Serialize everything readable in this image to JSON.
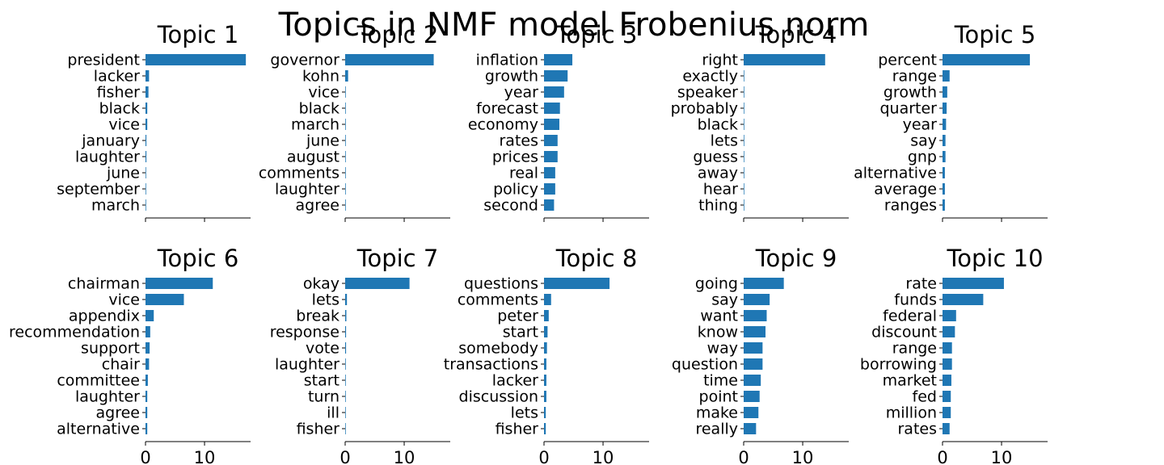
{
  "figure_title": "Topics in NMF model Frobenius norm",
  "colors": {
    "bar": "#1f77b4",
    "text": "#000000",
    "axis": "#000000"
  },
  "chart_data": [
    {
      "type": "bar",
      "orientation": "horizontal",
      "title": "Topic 1",
      "categories": [
        "president",
        "lacker",
        "fisher",
        "black",
        "vice",
        "january",
        "laughter",
        "june",
        "september",
        "march"
      ],
      "values": [
        17.0,
        0.6,
        0.5,
        0.3,
        0.3,
        0.15,
        0.15,
        0.1,
        0.1,
        0.1
      ],
      "xlim": [
        0,
        17.8
      ],
      "xticks": [
        0,
        10
      ],
      "show_xtick_labels": false
    },
    {
      "type": "bar",
      "orientation": "horizontal",
      "title": "Topic 2",
      "categories": [
        "governor",
        "kohn",
        "vice",
        "black",
        "march",
        "june",
        "august",
        "comments",
        "laughter",
        "agree"
      ],
      "values": [
        15.0,
        0.5,
        0.1,
        0.1,
        0.1,
        0.1,
        0.1,
        0.1,
        0.1,
        0.1
      ],
      "xlim": [
        0,
        17.8
      ],
      "xticks": [
        0,
        10
      ],
      "show_xtick_labels": false
    },
    {
      "type": "bar",
      "orientation": "horizontal",
      "title": "Topic 3",
      "categories": [
        "inflation",
        "growth",
        "year",
        "forecast",
        "economy",
        "rates",
        "prices",
        "real",
        "policy",
        "second"
      ],
      "values": [
        4.8,
        4.0,
        3.4,
        2.7,
        2.6,
        2.3,
        2.3,
        1.9,
        1.9,
        1.7
      ],
      "xlim": [
        0,
        17.8
      ],
      "xticks": [
        0,
        10
      ],
      "show_xtick_labels": false
    },
    {
      "type": "bar",
      "orientation": "horizontal",
      "title": "Topic 4",
      "categories": [
        "right",
        "exactly",
        "speaker",
        "probably",
        "black",
        "lets",
        "guess",
        "away",
        "hear",
        "thing"
      ],
      "values": [
        13.8,
        0.1,
        0.1,
        0.1,
        0.1,
        0.1,
        0.1,
        0.1,
        0.1,
        0.1
      ],
      "xlim": [
        0,
        17.8
      ],
      "xticks": [
        0,
        10
      ],
      "show_xtick_labels": false
    },
    {
      "type": "bar",
      "orientation": "horizontal",
      "title": "Topic 5",
      "categories": [
        "percent",
        "range",
        "growth",
        "quarter",
        "year",
        "say",
        "gnp",
        "alternative",
        "average",
        "ranges"
      ],
      "values": [
        14.8,
        1.2,
        0.8,
        0.7,
        0.6,
        0.5,
        0.5,
        0.4,
        0.4,
        0.4
      ],
      "xlim": [
        0,
        17.8
      ],
      "xticks": [
        0,
        10
      ],
      "show_xtick_labels": false
    },
    {
      "type": "bar",
      "orientation": "horizontal",
      "title": "Topic 6",
      "categories": [
        "chairman",
        "vice",
        "appendix",
        "recommendation",
        "support",
        "chair",
        "committee",
        "laughter",
        "agree",
        "alternative"
      ],
      "values": [
        11.4,
        6.5,
        1.4,
        0.8,
        0.7,
        0.6,
        0.4,
        0.3,
        0.3,
        0.3
      ],
      "xlim": [
        0,
        17.8
      ],
      "xticks": [
        0,
        10
      ],
      "show_xtick_labels": true
    },
    {
      "type": "bar",
      "orientation": "horizontal",
      "title": "Topic 7",
      "categories": [
        "okay",
        "lets",
        "break",
        "response",
        "vote",
        "laughter",
        "start",
        "turn",
        "ill",
        "fisher"
      ],
      "values": [
        10.9,
        0.3,
        0.2,
        0.15,
        0.15,
        0.1,
        0.1,
        0.1,
        0.1,
        0.1
      ],
      "xlim": [
        0,
        17.8
      ],
      "xticks": [
        0,
        10
      ],
      "show_xtick_labels": true
    },
    {
      "type": "bar",
      "orientation": "horizontal",
      "title": "Topic 8",
      "categories": [
        "questions",
        "comments",
        "peter",
        "start",
        "somebody",
        "transactions",
        "lacker",
        "discussion",
        "lets",
        "fisher"
      ],
      "values": [
        11.1,
        1.2,
        0.8,
        0.6,
        0.5,
        0.4,
        0.4,
        0.4,
        0.3,
        0.3
      ],
      "xlim": [
        0,
        17.8
      ],
      "xticks": [
        0,
        10
      ],
      "show_xtick_labels": true
    },
    {
      "type": "bar",
      "orientation": "horizontal",
      "title": "Topic 9",
      "categories": [
        "going",
        "say",
        "want",
        "know",
        "way",
        "question",
        "time",
        "point",
        "make",
        "really"
      ],
      "values": [
        6.8,
        4.4,
        3.9,
        3.7,
        3.2,
        3.2,
        2.9,
        2.7,
        2.5,
        2.1
      ],
      "xlim": [
        0,
        17.8
      ],
      "xticks": [
        0,
        10
      ],
      "show_xtick_labels": true
    },
    {
      "type": "bar",
      "orientation": "horizontal",
      "title": "Topic 10",
      "categories": [
        "rate",
        "funds",
        "federal",
        "discount",
        "range",
        "borrowing",
        "market",
        "fed",
        "million",
        "rates"
      ],
      "values": [
        10.4,
        6.9,
        2.3,
        2.1,
        1.6,
        1.6,
        1.5,
        1.4,
        1.4,
        1.2
      ],
      "xlim": [
        0,
        17.8
      ],
      "xticks": [
        0,
        10
      ],
      "show_xtick_labels": true
    }
  ]
}
